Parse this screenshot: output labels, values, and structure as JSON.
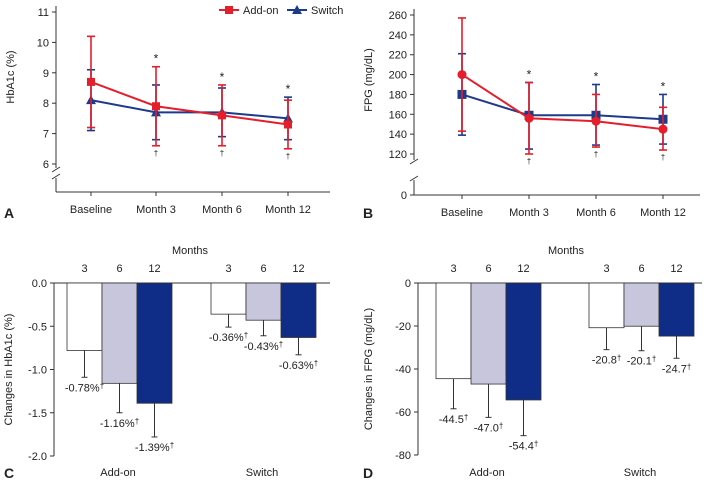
{
  "colors": {
    "addon": "#e41e2b",
    "switch": "#1e3a8a",
    "axis": "#333333",
    "bar_3": "#ffffff",
    "bar_6": "#c7c6dc",
    "bar_12": "#0f2c87"
  },
  "legend": {
    "addon": "Add-on",
    "switch": "Switch"
  },
  "annotations": {
    "star": "*",
    "dagger": "†"
  },
  "chart_data": [
    {
      "panel": "A",
      "type": "line",
      "ylabel": "HbA1c (%)",
      "categories": [
        "Baseline",
        "Month 3",
        "Month 6",
        "Month 12"
      ],
      "ylim": [
        6,
        11
      ],
      "ticks": [
        6,
        7,
        8,
        9,
        10,
        11
      ],
      "axis_break_zero": true,
      "series": [
        {
          "name": "Add-on",
          "values": [
            8.7,
            7.9,
            7.6,
            7.3
          ],
          "err_low": [
            7.2,
            6.6,
            6.6,
            6.5
          ],
          "err_high": [
            10.2,
            9.2,
            8.6,
            8.1
          ]
        },
        {
          "name": "Switch",
          "values": [
            8.1,
            7.7,
            7.7,
            7.5
          ],
          "err_low": [
            7.1,
            6.8,
            6.9,
            6.8
          ],
          "err_high": [
            9.1,
            8.6,
            8.5,
            8.2
          ]
        }
      ],
      "star_at": [
        1,
        2,
        3
      ],
      "dagger_at": [
        1,
        2,
        3
      ]
    },
    {
      "panel": "B",
      "type": "line",
      "ylabel": "FPG (mg/dL)",
      "categories": [
        "Baseline",
        "Month 3",
        "Month 6",
        "Month 12"
      ],
      "ylim": [
        120,
        260
      ],
      "ticks": [
        120,
        140,
        160,
        180,
        200,
        220,
        240,
        260
      ],
      "zero_label": "0",
      "axis_break_zero": true,
      "series": [
        {
          "name": "Add-on",
          "values": [
            200,
            156,
            153,
            145
          ],
          "err_low": [
            143,
            120,
            127,
            124
          ],
          "err_high": [
            257,
            192,
            180,
            167
          ]
        },
        {
          "name": "Switch",
          "values": [
            180,
            159,
            159,
            155
          ],
          "err_low": [
            139,
            125,
            129,
            130
          ],
          "err_high": [
            221,
            192,
            190,
            180
          ]
        }
      ],
      "star_at": [
        1,
        2,
        3
      ],
      "dagger_at": [
        1,
        2,
        3
      ]
    },
    {
      "panel": "C",
      "type": "bar",
      "title": "Months",
      "ylabel": "Changes in HbA1c (%)",
      "sub_categories": [
        "3",
        "6",
        "12"
      ],
      "groups": [
        "Add-on",
        "Switch"
      ],
      "ylim": [
        -2.0,
        0.0
      ],
      "ticks": [
        "0.0",
        "-0.5",
        "-1.0",
        "-1.5",
        "-2.0"
      ],
      "values": [
        [
          -0.78,
          -1.16,
          -1.39
        ],
        [
          -0.36,
          -0.43,
          -0.63
        ]
      ],
      "err": [
        [
          -1.09,
          -1.5,
          -1.78
        ],
        [
          -0.51,
          -0.61,
          -0.83
        ]
      ],
      "labels": [
        [
          "-0.78%",
          "-1.16%",
          "-1.39%"
        ],
        [
          "-0.36%",
          "-0.43%",
          "-0.63%"
        ]
      ]
    },
    {
      "panel": "D",
      "type": "bar",
      "title": "Months",
      "ylabel": "Changes in FPG (mg/dL)",
      "sub_categories": [
        "3",
        "6",
        "12"
      ],
      "groups": [
        "Add-on",
        "Switch"
      ],
      "ylim": [
        -80,
        0
      ],
      "ticks": [
        "0",
        "-20",
        "-40",
        "-60",
        "-80"
      ],
      "values": [
        [
          -44.5,
          -47.0,
          -54.4
        ],
        [
          -20.8,
          -20.1,
          -24.7
        ]
      ],
      "err": [
        [
          -58.5,
          -62.5,
          -71.0
        ],
        [
          -31.0,
          -31.5,
          -35.0
        ]
      ],
      "labels": [
        [
          "-44.5",
          "-47.0",
          "-54.4"
        ],
        [
          "-20.8",
          "-20.1",
          "-24.7"
        ]
      ]
    }
  ]
}
